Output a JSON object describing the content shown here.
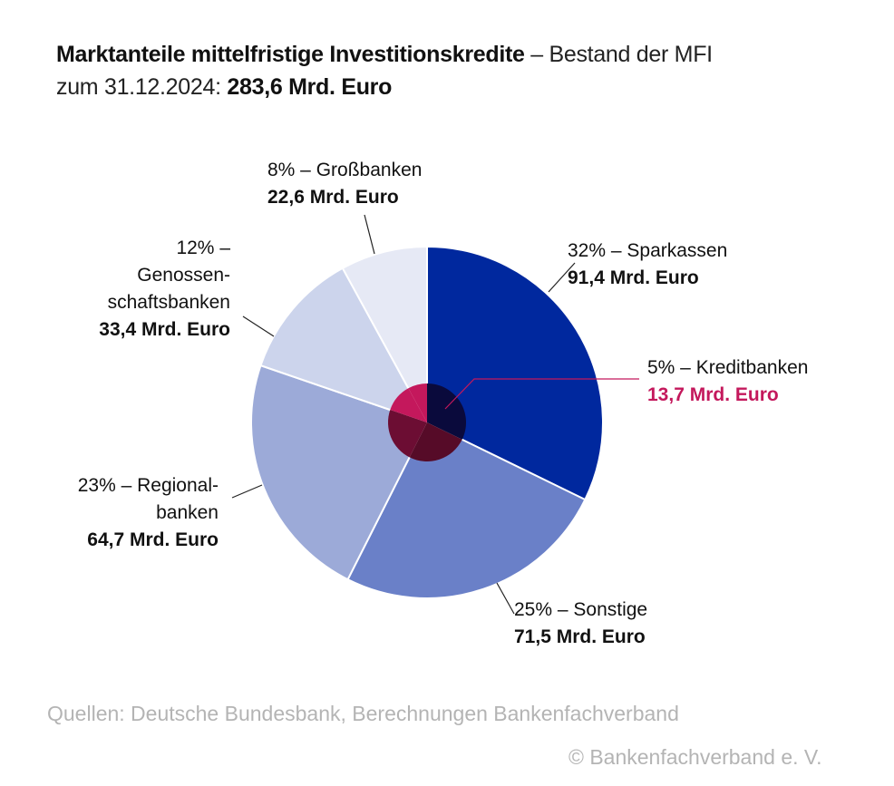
{
  "header": {
    "title_bold": "Marktanteile mittelfristige Investitionskredite",
    "title_rest": " – Bestand der MFI",
    "line2_prefix": "zum 31.12.2024: ",
    "line2_total": "283,6 Mrd. Euro"
  },
  "chart_data": {
    "type": "pie",
    "total": "283,6 Mrd. Euro",
    "slices": [
      {
        "lines": [
          "32% – Sparkassen"
        ],
        "value_label": "91,4 Mrd. Euro",
        "value": 91.4,
        "percent": 32,
        "color": "#00289e"
      },
      {
        "lines": [
          "25% – Sonstige"
        ],
        "value_label": "71,5 Mrd. Euro",
        "value": 71.5,
        "percent": 25,
        "color": "#6a80c8"
      },
      {
        "lines": [
          "23% – Regional-",
          "banken"
        ],
        "value_label": "64,7 Mrd. Euro",
        "value": 64.7,
        "percent": 23,
        "color": "#9caad8"
      },
      {
        "lines": [
          "12% –",
          "Genossen-",
          "schaftsbanken"
        ],
        "value_label": "33,4 Mrd. Euro",
        "value": 33.4,
        "percent": 12,
        "color": "#ccd4ec"
      },
      {
        "lines": [
          "8% – Großbanken"
        ],
        "value_label": "22,6 Mrd. Euro",
        "value": 22.6,
        "percent": 8,
        "color": "#e6e9f5"
      }
    ],
    "inner": {
      "lines": [
        "5% – Kreditbanken"
      ],
      "value_label": "13,7 Mrd. Euro",
      "value": 13.7,
      "percent": 5,
      "color": "#c4185c"
    }
  },
  "footer": {
    "source": "Quellen: Deutsche Bundesbank, Berechnungen Bankenfachverband",
    "copyright": "© Bankenfachverband e. V."
  }
}
